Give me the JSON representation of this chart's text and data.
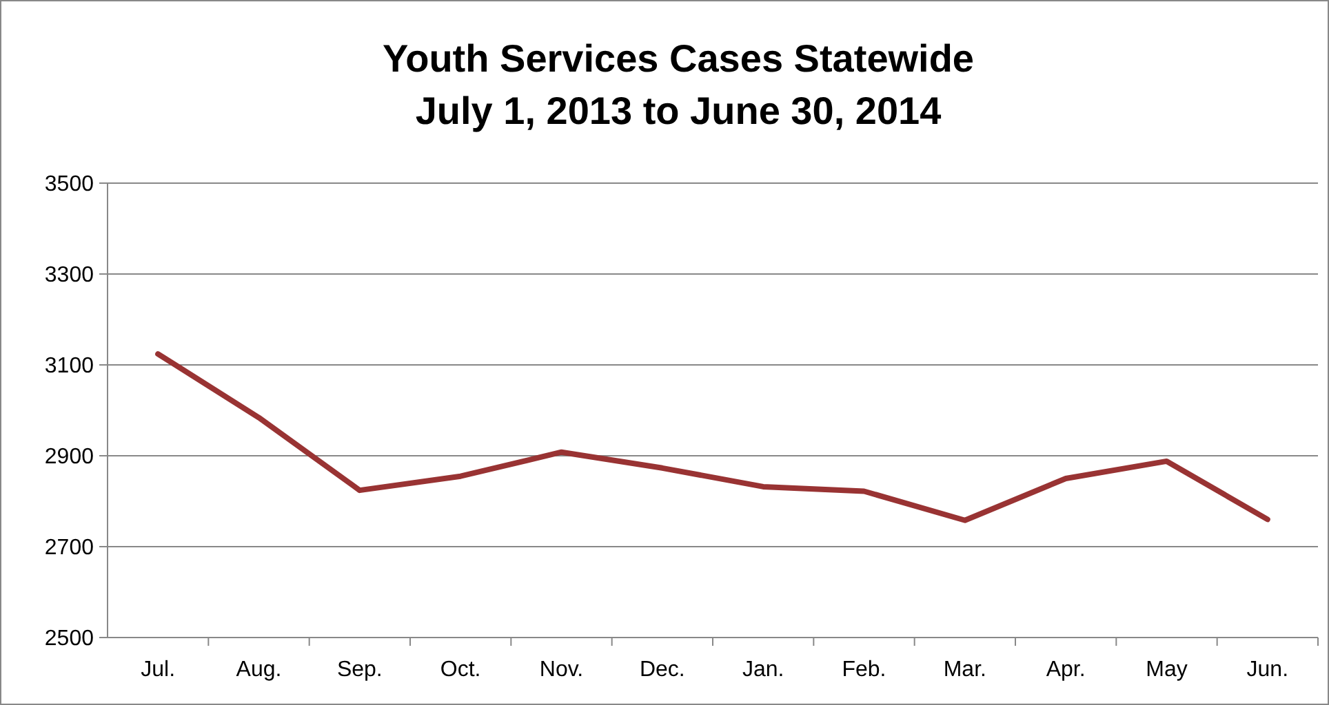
{
  "chart_data": {
    "type": "line",
    "title": "Youth Services Cases Statewide\nJuly 1, 2013 to June 30, 2014",
    "categories": [
      "Jul.",
      "Aug.",
      "Sep.",
      "Oct.",
      "Nov.",
      "Dec.",
      "Jan.",
      "Feb.",
      "Mar.",
      "Apr.",
      "May",
      "Jun."
    ],
    "series": [
      {
        "color": "#993333",
        "values": [
          3124,
          2984,
          2824,
          2855,
          2908,
          2873,
          2832,
          2822,
          2758,
          2850,
          2888,
          2760
        ]
      }
    ],
    "ylim": [
      2500,
      3500
    ],
    "yticks": [
      2500,
      2700,
      2900,
      3100,
      3300,
      3500
    ],
    "grid": "y",
    "marker": "none",
    "line_style": "solid"
  }
}
